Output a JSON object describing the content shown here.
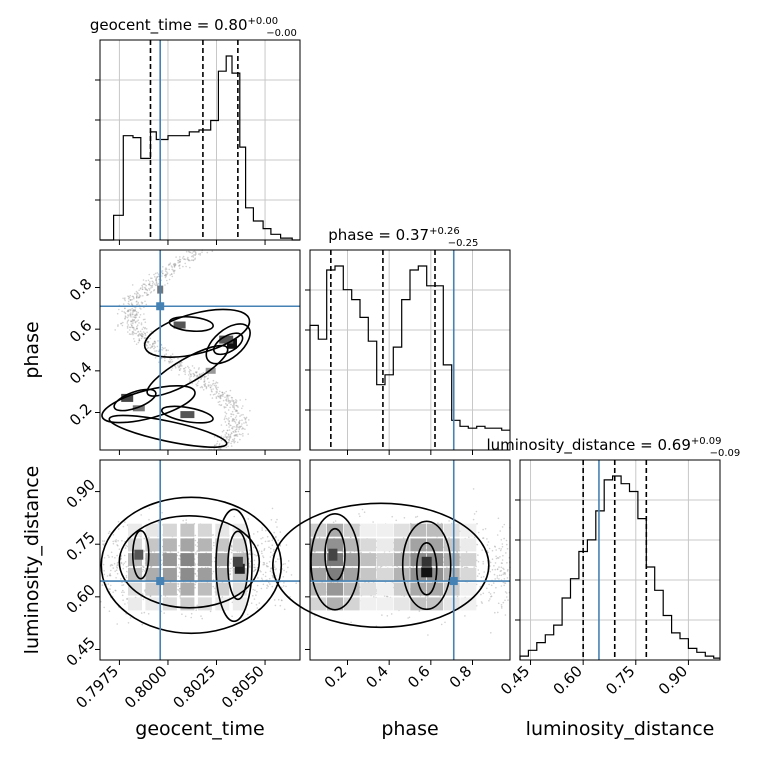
{
  "chart_data": {
    "type": "corner",
    "params": [
      "geocent_time",
      "phase",
      "luminosity_distance"
    ],
    "truths": [
      0.7996,
      0.71,
      0.645
    ],
    "titles": [
      {
        "main": "geocent_time = 0.80",
        "sup": "+0.00",
        "sub": "−0.00"
      },
      {
        "main": "phase = 0.37",
        "sup": "+0.26",
        "sub": "−0.25"
      },
      {
        "main": "luminosity_distance = 0.69",
        "sup": "+0.09",
        "sub": "−0.09"
      }
    ],
    "axes": {
      "geocent_time": {
        "range": [
          0.7965,
          0.8068
        ],
        "ticks": [
          0.7975,
          0.8,
          0.8025,
          0.805
        ],
        "tick_labels": [
          "0.7975",
          "0.8000",
          "0.8025",
          "0.8050"
        ],
        "label": "geocent_time"
      },
      "phase": {
        "range": [
          0.02,
          0.98
        ],
        "ticks": [
          0.2,
          0.4,
          0.6,
          0.8
        ],
        "tick_labels": [
          "0.2",
          "0.4",
          "0.6",
          "0.8"
        ],
        "label": "phase"
      },
      "luminosity_distance": {
        "range": [
          0.42,
          0.99
        ],
        "ticks": [
          0.45,
          0.6,
          0.75,
          0.9
        ],
        "tick_labels": [
          "0.45",
          "0.60",
          "0.75",
          "0.90"
        ],
        "label": "luminosity_distance"
      }
    },
    "histograms": [
      {
        "param": "geocent_time",
        "quantiles": [
          0.7991,
          0.8018,
          0.8036
        ],
        "bin_edges": [
          0.7965,
          0.7972,
          0.7977,
          0.7982,
          0.7986,
          0.7991,
          0.7994,
          0.8,
          0.8005,
          0.8011,
          0.8016,
          0.8022,
          0.8026,
          0.803,
          0.8033,
          0.8037,
          0.804,
          0.8044,
          0.8049,
          0.8053,
          0.8058,
          0.8064,
          0.8068
        ],
        "counts": [
          0,
          0.13,
          0.55,
          0.54,
          0.43,
          0.57,
          0.53,
          0.55,
          0.55,
          0.57,
          0.58,
          0.63,
          0.89,
          0.97,
          0.88,
          0.49,
          0.17,
          0.1,
          0.06,
          0.03,
          0.01,
          0
        ]
      },
      {
        "param": "phase",
        "quantiles": [
          0.12,
          0.37,
          0.62
        ],
        "bin_edges": [
          0.02,
          0.06,
          0.1,
          0.14,
          0.18,
          0.22,
          0.26,
          0.3,
          0.34,
          0.38,
          0.42,
          0.46,
          0.5,
          0.54,
          0.58,
          0.62,
          0.66,
          0.7,
          0.74,
          0.78,
          0.82,
          0.86,
          0.9,
          0.94,
          0.98
        ],
        "counts": [
          0.63,
          0.56,
          0.91,
          0.93,
          0.81,
          0.76,
          0.67,
          0.55,
          0.33,
          0.38,
          0.52,
          0.76,
          0.91,
          0.93,
          0.83,
          0.83,
          0.43,
          0.15,
          0.12,
          0.11,
          0.12,
          0.11,
          0.11,
          0.1
        ]
      },
      {
        "param": "luminosity_distance",
        "quantiles": [
          0.6,
          0.69,
          0.78
        ],
        "bin_edges": [
          0.42,
          0.444,
          0.468,
          0.492,
          0.516,
          0.54,
          0.564,
          0.588,
          0.612,
          0.636,
          0.66,
          0.684,
          0.708,
          0.732,
          0.756,
          0.78,
          0.804,
          0.828,
          0.852,
          0.876,
          0.9,
          0.924,
          0.948,
          0.972,
          0.99
        ],
        "counts": [
          0.02,
          0.05,
          0.09,
          0.13,
          0.18,
          0.32,
          0.42,
          0.56,
          0.62,
          0.77,
          0.93,
          0.95,
          0.91,
          0.87,
          0.73,
          0.48,
          0.36,
          0.23,
          0.14,
          0.11,
          0.06,
          0.04,
          0.02,
          0.01
        ]
      }
    ],
    "samples_2d": [
      {
        "x": "geocent_time",
        "y": "phase",
        "shape": "sinuous band",
        "peaks": [
          [
            0.8033,
            0.53
          ],
          [
            0.7979,
            0.27
          ],
          [
            0.8006,
            0.62
          ],
          [
            0.801,
            0.19
          ]
        ]
      },
      {
        "x": "geocent_time",
        "y": "luminosity_distance",
        "peaks": [
          [
            0.8037,
            0.68
          ],
          [
            0.7985,
            0.72
          ]
        ]
      },
      {
        "x": "phase",
        "y": "luminosity_distance",
        "peaks": [
          [
            0.58,
            0.67
          ],
          [
            0.12,
            0.72
          ]
        ]
      }
    ],
    "grid": true,
    "colors": {
      "truth": "#4682b4",
      "hist": "#000000",
      "points": "#888888",
      "contour": "#000000"
    }
  }
}
